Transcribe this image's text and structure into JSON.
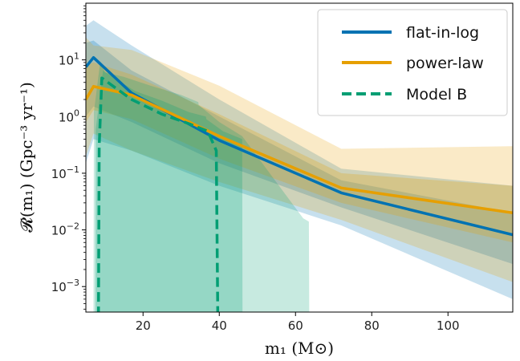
{
  "chart_data": {
    "type": "line",
    "title": "",
    "xlabel": "m₁ (M⊙)",
    "ylabel": "𝓡(m₁) (Gpc⁻³ yr⁻¹)",
    "xlim": [
      5,
      117
    ],
    "ylim_log10": [
      -3.45,
      2.0
    ],
    "yscale": "log",
    "grid": false,
    "legend_position": "top-right",
    "x_ticks": [
      {
        "value": 20,
        "label": "20"
      },
      {
        "value": 40,
        "label": "40"
      },
      {
        "value": 60,
        "label": "60"
      },
      {
        "value": 80,
        "label": "80"
      },
      {
        "value": 100,
        "label": "100"
      }
    ],
    "y_ticks": [
      {
        "exp": 1,
        "base": "10",
        "sup": "1"
      },
      {
        "exp": 0,
        "base": "10",
        "sup": "0"
      },
      {
        "exp": -1,
        "base": "10",
        "sup": "−1"
      },
      {
        "exp": -2,
        "base": "10",
        "sup": "−2"
      },
      {
        "exp": -3,
        "base": "10",
        "sup": "−3"
      }
    ],
    "series": [
      {
        "name": "flat-in-log",
        "color": "#0072b2",
        "dash": false,
        "x": [
          5,
          7,
          17,
          40,
          72,
          117
        ],
        "y": [
          7.5,
          11,
          2.6,
          0.38,
          0.045,
          0.0082
        ],
        "band_outer": {
          "x": [
            5,
            7,
            17,
            40,
            72,
            117
          ],
          "upper": [
            40,
            50,
            18,
            2.0,
            0.12,
            0.06
          ],
          "lower": [
            0.15,
            0.4,
            0.25,
            0.06,
            0.012,
            0.0006
          ]
        },
        "band_inner": {
          "x": [
            5,
            7,
            17,
            40,
            72,
            117
          ],
          "upper": [
            20,
            22,
            6.5,
            1.0,
            0.075,
            0.02
          ],
          "lower": [
            1.0,
            1.5,
            0.8,
            0.15,
            0.025,
            0.0025
          ]
        }
      },
      {
        "name": "power-law",
        "color": "#e69f00",
        "dash": false,
        "x": [
          5,
          7,
          17,
          40,
          72,
          117
        ],
        "y": [
          2.0,
          3.4,
          2.4,
          0.45,
          0.055,
          0.02
        ],
        "band_outer": {
          "x": [
            5,
            7,
            17,
            40,
            72,
            117
          ],
          "upper": [
            25,
            18,
            15,
            3.5,
            0.27,
            0.3
          ],
          "lower": [
            0.2,
            0.5,
            0.25,
            0.07,
            0.015,
            0.0012
          ]
        },
        "band_inner": {
          "x": [
            5,
            7,
            17,
            40,
            72,
            117
          ],
          "upper": [
            8,
            9,
            5.5,
            1.1,
            0.1,
            0.06
          ],
          "lower": [
            0.8,
            1.3,
            0.9,
            0.18,
            0.03,
            0.006
          ]
        }
      },
      {
        "name": "Model B",
        "color": "#009e73",
        "dash": true,
        "x": [
          8.3,
          8.5,
          9.2,
          12,
          17,
          25,
          32,
          37,
          39.2,
          39.6
        ],
        "y": [
          0.0003,
          0.3,
          4.8,
          3.5,
          2.0,
          1.1,
          0.75,
          0.55,
          0.25,
          0.0003
        ],
        "band_outer": {
          "x": [
            7,
            7.1,
            8.8,
            10,
            15,
            22,
            30,
            34.5,
            34.6,
            40,
            46,
            62,
            63.5,
            63.6
          ],
          "upper": [
            0.0003,
            1.2,
            9.5,
            6.0,
            5.0,
            3.5,
            2.4,
            1.8,
            1.6,
            0.8,
            0.45,
            0.016,
            0.014,
            0.0003
          ],
          "lower": [
            0.0003,
            0.0003,
            0.0003,
            0.0003,
            0.0003,
            0.0003,
            0.0003,
            0.0003,
            0.0003,
            0.0003,
            0.0003,
            0.0003,
            0.0003,
            0.0003
          ]
        },
        "band_inner": {
          "x": [
            7.5,
            7.6,
            9.5,
            12,
            18,
            25,
            32,
            36.5,
            36.6,
            41,
            46,
            46.1
          ],
          "upper": [
            0.0003,
            0.6,
            6.5,
            5.0,
            2.8,
            1.9,
            1.2,
            1.0,
            0.9,
            0.55,
            0.4,
            0.0003
          ],
          "lower": [
            0.0003,
            0.0003,
            0.0003,
            0.0003,
            0.0003,
            0.0003,
            0.0003,
            0.0003,
            0.0003,
            0.0003,
            0.0003,
            0.0003
          ]
        }
      }
    ]
  }
}
